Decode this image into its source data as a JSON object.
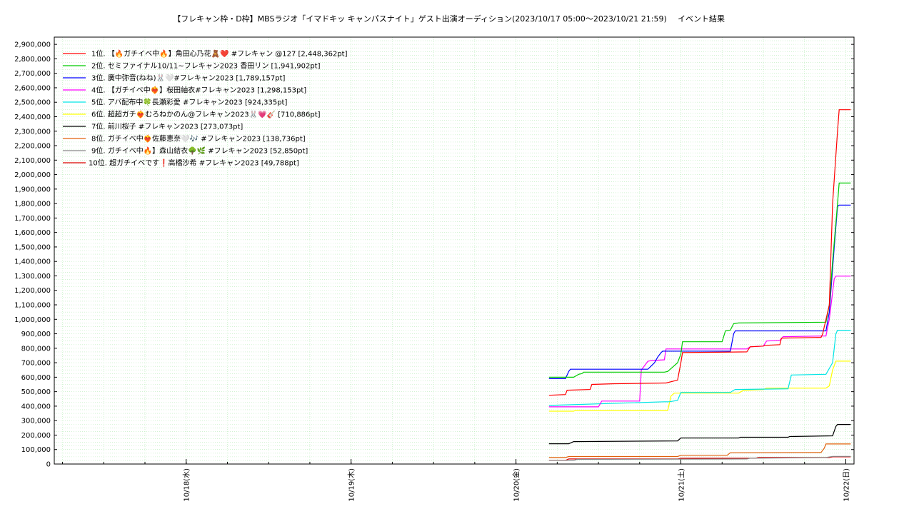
{
  "chart_data": {
    "type": "line",
    "title": "【フレキャン枠・D枠】MBSラジオ「イマドキッ キャンパスナイト」ゲスト出演オーディション(2023/10/17 05:00〜2023/10/21 21:59)",
    "subtitle": "イベント結果",
    "ylim": [
      0,
      2950000
    ],
    "yticks": [
      0,
      100000,
      200000,
      300000,
      400000,
      500000,
      600000,
      700000,
      800000,
      900000,
      1000000,
      1100000,
      1200000,
      1300000,
      1400000,
      1500000,
      1600000,
      1700000,
      1800000,
      1900000,
      2000000,
      2100000,
      2200000,
      2300000,
      2400000,
      2500000,
      2600000,
      2700000,
      2800000,
      2900000
    ],
    "ytick_labels": [
      "0",
      "100,000",
      "200,000",
      "300,000",
      "400,000",
      "500,000",
      "600,000",
      "700,000",
      "800,000",
      "900,000",
      "1,000,000",
      "1,100,000",
      "1,200,000",
      "1,300,000",
      "1,400,000",
      "1,500,000",
      "1,600,000",
      "1,700,000",
      "1,800,000",
      "1,900,000",
      "2,000,000",
      "2,100,000",
      "2,200,000",
      "2,300,000",
      "2,400,000",
      "2,500,000",
      "2,600,000",
      "2,700,000",
      "2,800,000",
      "2,900,000"
    ],
    "xlim": [
      17.2,
      22.05
    ],
    "xticks": [
      18,
      19,
      20,
      21,
      22
    ],
    "xtick_labels": [
      "10/18(水)",
      "10/19(木)",
      "10/20(金)",
      "10/21(土)",
      "10/22(日)"
    ],
    "grid": true,
    "legend_position": "top-left",
    "series": [
      {
        "name": "1位. 【🔥ガチイベ中🔥】角田心乃花🧸❤️ #フレキャン @127 [2,448,362pt]",
        "color": "#ff0000",
        "x": [
          20.2,
          20.3,
          20.31,
          20.45,
          20.46,
          20.6,
          20.61,
          20.9,
          20.91,
          20.98,
          21.0,
          21.01,
          21.4,
          21.42,
          21.5,
          21.51,
          21.6,
          21.61,
          21.85,
          21.86,
          21.9,
          21.92,
          21.95,
          21.96,
          22.03
        ],
        "y": [
          475000,
          480000,
          510000,
          515000,
          550000,
          555000,
          555000,
          560000,
          560000,
          580000,
          700000,
          770000,
          775000,
          810000,
          815000,
          820000,
          825000,
          870000,
          875000,
          900000,
          1100000,
          1800000,
          2300000,
          2448362,
          2448362
        ]
      },
      {
        "name": "2位. セミファイナル10/11~フレキャン2023 香田リン [1,941,902pt]",
        "color": "#00cc00",
        "x": [
          20.2,
          20.35,
          20.38,
          20.4,
          20.41,
          20.9,
          20.92,
          20.98,
          21.0,
          21.01,
          21.25,
          21.27,
          21.3,
          21.32,
          21.35,
          21.36,
          21.88,
          21.9,
          21.92,
          21.95,
          21.96,
          22.03
        ],
        "y": [
          600000,
          600000,
          620000,
          625000,
          635000,
          635000,
          640000,
          700000,
          760000,
          845000,
          845000,
          920000,
          925000,
          970000,
          975000,
          975000,
          980000,
          1100000,
          1400000,
          1800000,
          1941902,
          1941902
        ]
      },
      {
        "name": "3位. 廣中弥音(ねね)🐰🤍#フレキャン2023 [1,789,157pt]",
        "color": "#0000ff",
        "x": [
          20.2,
          20.3,
          20.32,
          20.33,
          20.8,
          20.84,
          20.86,
          20.88,
          20.89,
          21.3,
          21.32,
          21.33,
          21.88,
          21.9,
          21.93,
          21.95,
          21.96,
          22.03
        ],
        "y": [
          590000,
          590000,
          640000,
          655000,
          655000,
          700000,
          740000,
          770000,
          780000,
          780000,
          900000,
          920000,
          920000,
          1050000,
          1500000,
          1780000,
          1789157,
          1789157
        ]
      },
      {
        "name": "4位. 【ガチイベ中❤️‍🔥】桜田紬衣#フレキャン2023 [1,298,153pt]",
        "color": "#ff00ff",
        "x": [
          20.2,
          20.5,
          20.52,
          20.75,
          20.76,
          20.8,
          20.82,
          20.9,
          20.91,
          21.4,
          21.42,
          21.5,
          21.52,
          21.6,
          21.62,
          21.88,
          21.9,
          21.93,
          21.94,
          22.03
        ],
        "y": [
          395000,
          395000,
          435000,
          435000,
          650000,
          710000,
          715000,
          720000,
          795000,
          795000,
          810000,
          815000,
          850000,
          855000,
          880000,
          885000,
          1000000,
          1280000,
          1298153,
          1298153
        ]
      },
      {
        "name": "5位. アバ配布中🍀長瀬彩愛 #フレキャン2023 [924,335pt]",
        "color": "#00e5e5",
        "x": [
          20.2,
          20.9,
          20.93,
          20.98,
          21.0,
          21.3,
          21.32,
          21.33,
          21.65,
          21.67,
          21.88,
          21.92,
          21.94,
          21.95,
          22.03
        ],
        "y": [
          405000,
          430000,
          430000,
          440000,
          495000,
          495000,
          510000,
          515000,
          520000,
          615000,
          620000,
          700000,
          900000,
          924335,
          924335
        ]
      },
      {
        "name": "6位. 超超ガチ❤️‍🔥むろねかのん@フレキャン2023🐰💗🎸 [710,886pt]",
        "color": "#ffff00",
        "x": [
          20.2,
          20.35,
          20.36,
          20.92,
          20.94,
          20.96,
          21.35,
          21.38,
          21.5,
          21.52,
          21.88,
          21.9,
          21.92,
          21.94,
          22.03
        ],
        "y": [
          365000,
          365000,
          370000,
          370000,
          470000,
          490000,
          490000,
          510000,
          515000,
          525000,
          525000,
          540000,
          650000,
          710886,
          710886
        ]
      },
      {
        "name": "7位. 前川桜子 #フレキャン2023 [273,073pt]",
        "color": "#000000",
        "x": [
          20.2,
          20.32,
          20.35,
          20.98,
          21.0,
          21.35,
          21.36,
          21.65,
          21.66,
          21.92,
          21.94,
          21.95,
          22.03
        ],
        "y": [
          140000,
          140000,
          155000,
          160000,
          180000,
          180000,
          185000,
          185000,
          190000,
          195000,
          260000,
          273073,
          273073
        ]
      },
      {
        "name": "8位. ガチイベ中❤️‍🔥佐藤恵奈🤍🎶 #フレキャン2023 [138,736pt]",
        "color": "#e0600a",
        "x": [
          20.2,
          20.3,
          20.32,
          20.98,
          21.0,
          21.28,
          21.3,
          21.85,
          21.87,
          21.88,
          22.03
        ],
        "y": [
          45000,
          45000,
          52000,
          52000,
          60000,
          60000,
          78000,
          80000,
          110000,
          138736,
          138736
        ]
      },
      {
        "name": "9位. ガチイベ中🔥】森山結衣🌳🌿 #フレキャン2023 [52,850pt]",
        "color": "#888888",
        "x": [
          20.2,
          20.35,
          20.37,
          21.4,
          21.42,
          21.88,
          21.92,
          22.03
        ],
        "y": [
          25000,
          25000,
          32000,
          35000,
          40000,
          45000,
          52850,
          52850
        ]
      },
      {
        "name": "10位. 超ガチイベです❗️高橋沙希 #フレキャン2023 [49,788pt]",
        "color": "#dd0000",
        "x": [
          20.2,
          20.3,
          20.32,
          20.98,
          21.0,
          21.45,
          21.47,
          21.9,
          21.92,
          22.03
        ],
        "y": [
          25000,
          25000,
          35000,
          35000,
          40000,
          40000,
          45000,
          45000,
          49788,
          49788
        ]
      }
    ]
  }
}
